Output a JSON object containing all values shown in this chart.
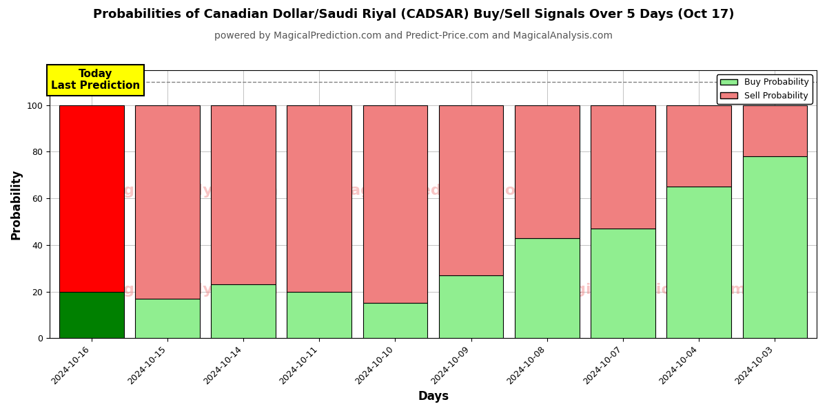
{
  "title": "Probabilities of Canadian Dollar/Saudi Riyal (CADSAR) Buy/Sell Signals Over 5 Days (Oct 17)",
  "subtitle": "powered by MagicalPrediction.com and Predict-Price.com and MagicalAnalysis.com",
  "xlabel": "Days",
  "ylabel": "Probability",
  "categories": [
    "2024-10-16",
    "2024-10-15",
    "2024-10-14",
    "2024-10-11",
    "2024-10-10",
    "2024-10-09",
    "2024-10-08",
    "2024-10-07",
    "2024-10-04",
    "2024-10-03"
  ],
  "buy_values": [
    20,
    17,
    23,
    20,
    15,
    27,
    43,
    47,
    65,
    78
  ],
  "sell_values": [
    80,
    83,
    77,
    80,
    85,
    73,
    57,
    53,
    35,
    22
  ],
  "today_bar_buy_color": "#008000",
  "today_bar_sell_color": "#FF0000",
  "other_bar_buy_color": "#90EE90",
  "other_bar_sell_color": "#F08080",
  "today_label": "Today\nLast Prediction",
  "today_label_bg": "#FFFF00",
  "dashed_line_y": 110,
  "ylim": [
    0,
    115
  ],
  "yticks": [
    0,
    20,
    40,
    60,
    80,
    100
  ],
  "legend_buy_label": "Buy Probability",
  "legend_sell_label": "Sell Probability",
  "bar_width": 0.85,
  "bar_edgecolor": "black",
  "bar_linewidth": 0.8,
  "grid_color": "#aaaaaa",
  "grid_linewidth": 0.5,
  "background_color": "#ffffff",
  "title_fontsize": 13,
  "subtitle_fontsize": 10,
  "axis_label_fontsize": 12,
  "tick_fontsize": 9,
  "watermark_color": "#F08080",
  "watermark_alpha": 0.45,
  "watermark_fontsize": 16
}
